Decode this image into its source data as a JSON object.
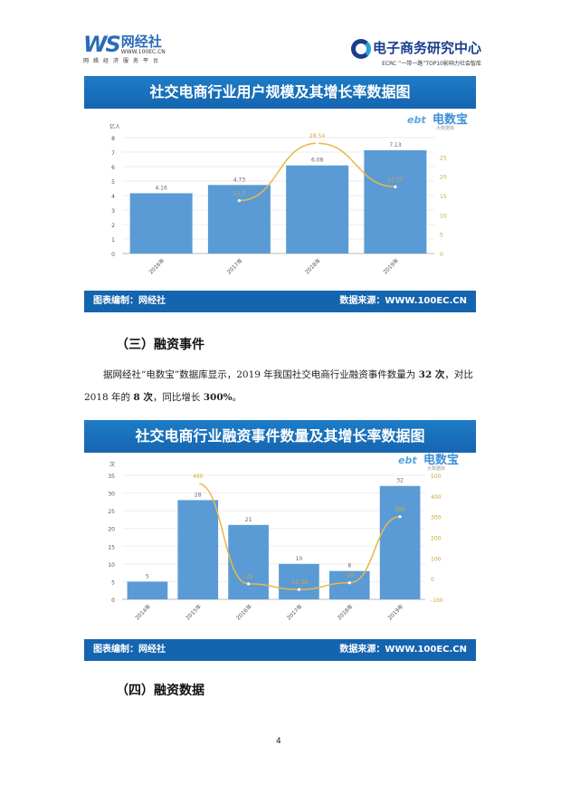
{
  "header": {
    "left_logo": {
      "mark": "WS",
      "name": "网经社",
      "url": "WWW.100EC.CN",
      "tagline": "网络经济服务平台"
    },
    "right_logo": {
      "name": "电子商务研究中心",
      "abbr": "ECRC",
      "tagline": "“一带一路”TOP10影响力社会智库"
    }
  },
  "watermark": {
    "name": "电数宝",
    "sub": "大数据库"
  },
  "chart1_banner": "社交电商行业用户规模及其增长率数据图",
  "chart_footer": {
    "left": "图表编制：网经社",
    "right": "数据来源：WWW.100EC.CN"
  },
  "section3": {
    "title": "（三）融资事件",
    "para": [
      {
        "t": "据网经社“电数宝”数据库显示，2019 年我国社交电商行业融资事件数量为 "
      },
      {
        "b": "32 次"
      },
      {
        "t": "，对比 2018 年的 "
      },
      {
        "b": "8 次"
      },
      {
        "t": "，同比增长 "
      },
      {
        "b": "300%"
      },
      {
        "t": "。"
      }
    ]
  },
  "chart2_banner": "社交电商行业融资事件数量及其增长率数据图",
  "section4": {
    "title": "（四）融资数据"
  },
  "page_number": "4",
  "chart_data": [
    {
      "type": "bar+line",
      "categories": [
        "2016年",
        "2017年",
        "2018年",
        "2019年"
      ],
      "ylabel": "亿人",
      "ylim": [
        0,
        8
      ],
      "yticks": [
        0,
        1,
        2,
        3,
        4,
        5,
        6,
        7,
        8
      ],
      "y2lim": [
        0,
        30
      ],
      "y2ticks": [
        0,
        5,
        10,
        15,
        20,
        25
      ],
      "series": [
        {
          "kind": "bar",
          "axis": "left",
          "values": [
            4.16,
            4.73,
            6.08,
            7.13
          ],
          "color": "#5b9bd5"
        },
        {
          "kind": "line",
          "axis": "right",
          "values": [
            null,
            13.7,
            28.54,
            17.27
          ],
          "color": "#e8b84a"
        }
      ],
      "grid": true
    },
    {
      "type": "bar+line",
      "categories": [
        "2014年",
        "2015年",
        "2016年",
        "2017年",
        "2018年",
        "2019年"
      ],
      "ylabel": "次",
      "ylim": [
        0,
        35
      ],
      "yticks": [
        0,
        5,
        10,
        15,
        20,
        25,
        30,
        35
      ],
      "y2lim": [
        -100,
        500
      ],
      "y2ticks": [
        -100,
        0,
        100,
        200,
        300,
        400,
        500
      ],
      "series": [
        {
          "kind": "bar",
          "axis": "left",
          "values": [
            5,
            28,
            21,
            10,
            8,
            32
          ],
          "color": "#5b9bd5"
        },
        {
          "kind": "line",
          "axis": "right",
          "values": [
            null,
            460,
            -25,
            -52.38,
            -20,
            300
          ],
          "color": "#e8b84a"
        }
      ],
      "grid": true
    }
  ]
}
